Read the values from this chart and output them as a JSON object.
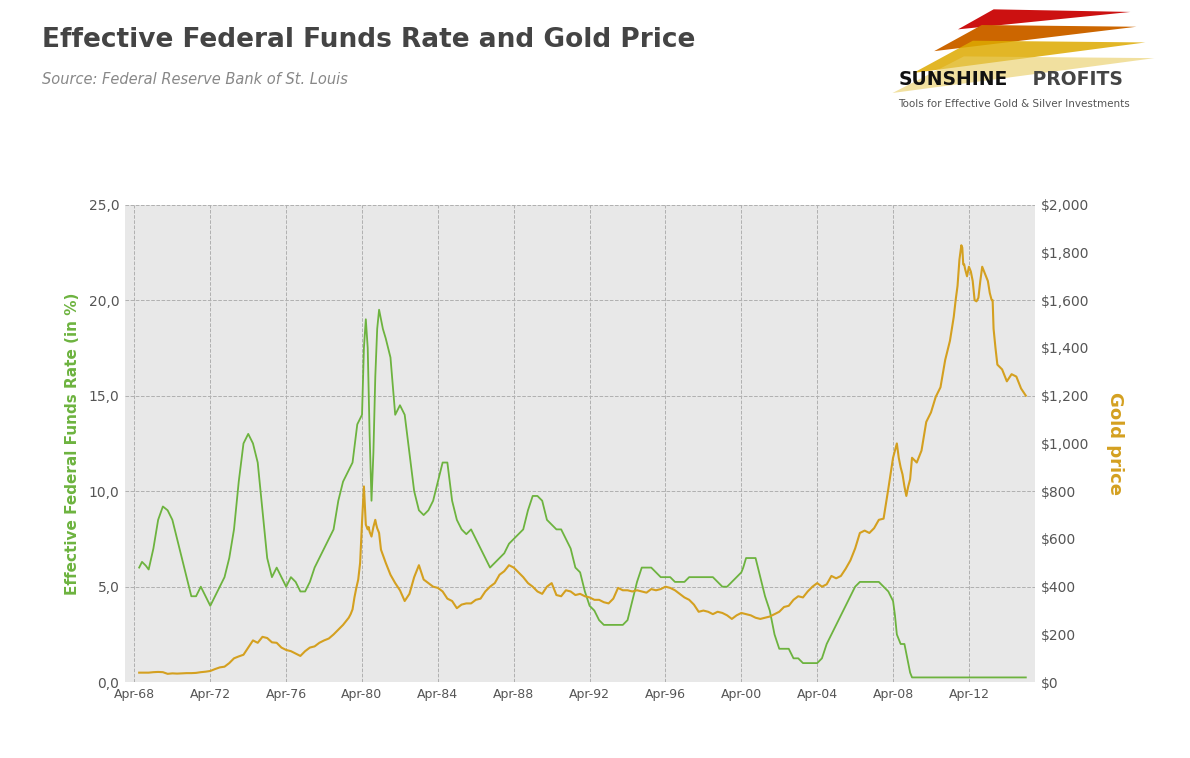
{
  "title": "Effective Federal Funds Rate and Gold Price",
  "source": "Source: Federal Reserve Bank of St. Louis",
  "ylabel_left": "Effective Federal Funds Rate (in %)",
  "ylabel_right": "Gold price",
  "background_color": "#e8e8e8",
  "figure_background": "#ffffff",
  "line_color_ffr": "#6db33f",
  "line_color_gold": "#d4a020",
  "ylim_left": [
    0,
    25
  ],
  "ylim_right": [
    0,
    2000
  ],
  "ytick_labels_left": [
    "0,0",
    "5,0",
    "10,0",
    "15,0",
    "20,0",
    "25,0"
  ],
  "ytick_vals_left": [
    0,
    5,
    10,
    15,
    20,
    25
  ],
  "ytick_vals_right": [
    0,
    200,
    400,
    600,
    800,
    1000,
    1200,
    1400,
    1600,
    1800,
    2000
  ],
  "ytick_labels_right": [
    "$0",
    "$200",
    "$400",
    "$600",
    "$800",
    "$1,000",
    "$1,200",
    "$1,400",
    "$1,600",
    "$1,800",
    "$2,000"
  ],
  "xtick_years": [
    1968,
    1972,
    1976,
    1980,
    1984,
    1988,
    1992,
    1996,
    2000,
    2004,
    2008,
    2012
  ],
  "xtick_labels": [
    "Apr-68",
    "Apr-72",
    "Apr-76",
    "Apr-80",
    "Apr-84",
    "Apr-88",
    "Apr-92",
    "Apr-96",
    "Apr-00",
    "Apr-04",
    "Apr-08",
    "Apr-12"
  ],
  "xlim": [
    1967.5,
    2015.5
  ],
  "ffr_data": [
    [
      1968.25,
      6.0
    ],
    [
      1968.4,
      6.3
    ],
    [
      1968.6,
      6.1
    ],
    [
      1968.75,
      5.9
    ],
    [
      1969.0,
      7.0
    ],
    [
      1969.25,
      8.5
    ],
    [
      1969.5,
      9.2
    ],
    [
      1969.75,
      9.0
    ],
    [
      1970.0,
      8.5
    ],
    [
      1970.25,
      7.5
    ],
    [
      1970.5,
      6.5
    ],
    [
      1970.75,
      5.5
    ],
    [
      1971.0,
      4.5
    ],
    [
      1971.25,
      4.5
    ],
    [
      1971.5,
      5.0
    ],
    [
      1971.75,
      4.5
    ],
    [
      1972.0,
      4.0
    ],
    [
      1972.25,
      4.5
    ],
    [
      1972.5,
      5.0
    ],
    [
      1972.75,
      5.5
    ],
    [
      1973.0,
      6.5
    ],
    [
      1973.25,
      8.0
    ],
    [
      1973.5,
      10.5
    ],
    [
      1973.75,
      12.5
    ],
    [
      1974.0,
      13.0
    ],
    [
      1974.25,
      12.5
    ],
    [
      1974.5,
      11.5
    ],
    [
      1974.75,
      9.0
    ],
    [
      1975.0,
      6.5
    ],
    [
      1975.25,
      5.5
    ],
    [
      1975.5,
      6.0
    ],
    [
      1975.75,
      5.5
    ],
    [
      1976.0,
      5.0
    ],
    [
      1976.25,
      5.5
    ],
    [
      1976.5,
      5.25
    ],
    [
      1976.75,
      4.75
    ],
    [
      1977.0,
      4.75
    ],
    [
      1977.25,
      5.25
    ],
    [
      1977.5,
      6.0
    ],
    [
      1977.75,
      6.5
    ],
    [
      1978.0,
      7.0
    ],
    [
      1978.25,
      7.5
    ],
    [
      1978.5,
      8.0
    ],
    [
      1978.75,
      9.5
    ],
    [
      1979.0,
      10.5
    ],
    [
      1979.25,
      11.0
    ],
    [
      1979.5,
      11.5
    ],
    [
      1979.75,
      13.5
    ],
    [
      1980.0,
      14.0
    ],
    [
      1980.1,
      17.5
    ],
    [
      1980.2,
      19.0
    ],
    [
      1980.3,
      17.5
    ],
    [
      1980.4,
      13.0
    ],
    [
      1980.5,
      9.5
    ],
    [
      1980.6,
      12.0
    ],
    [
      1980.7,
      16.0
    ],
    [
      1980.8,
      18.5
    ],
    [
      1980.9,
      19.5
    ],
    [
      1981.0,
      19.0
    ],
    [
      1981.1,
      18.5
    ],
    [
      1981.25,
      18.0
    ],
    [
      1981.5,
      17.0
    ],
    [
      1981.75,
      14.0
    ],
    [
      1982.0,
      14.5
    ],
    [
      1982.25,
      14.0
    ],
    [
      1982.5,
      12.0
    ],
    [
      1982.75,
      10.0
    ],
    [
      1983.0,
      9.0
    ],
    [
      1983.25,
      8.75
    ],
    [
      1983.5,
      9.0
    ],
    [
      1983.75,
      9.5
    ],
    [
      1984.0,
      10.5
    ],
    [
      1984.25,
      11.5
    ],
    [
      1984.5,
      11.5
    ],
    [
      1984.75,
      9.5
    ],
    [
      1985.0,
      8.5
    ],
    [
      1985.25,
      8.0
    ],
    [
      1985.5,
      7.75
    ],
    [
      1985.75,
      8.0
    ],
    [
      1986.0,
      7.5
    ],
    [
      1986.25,
      7.0
    ],
    [
      1986.5,
      6.5
    ],
    [
      1986.75,
      6.0
    ],
    [
      1987.0,
      6.25
    ],
    [
      1987.25,
      6.5
    ],
    [
      1987.5,
      6.75
    ],
    [
      1987.75,
      7.25
    ],
    [
      1988.0,
      7.5
    ],
    [
      1988.25,
      7.75
    ],
    [
      1988.5,
      8.0
    ],
    [
      1988.75,
      9.0
    ],
    [
      1989.0,
      9.75
    ],
    [
      1989.25,
      9.75
    ],
    [
      1989.5,
      9.5
    ],
    [
      1989.75,
      8.5
    ],
    [
      1990.0,
      8.25
    ],
    [
      1990.25,
      8.0
    ],
    [
      1990.5,
      8.0
    ],
    [
      1990.75,
      7.5
    ],
    [
      1991.0,
      7.0
    ],
    [
      1991.25,
      6.0
    ],
    [
      1991.5,
      5.75
    ],
    [
      1991.75,
      4.75
    ],
    [
      1992.0,
      4.0
    ],
    [
      1992.25,
      3.75
    ],
    [
      1992.5,
      3.25
    ],
    [
      1992.75,
      3.0
    ],
    [
      1993.0,
      3.0
    ],
    [
      1993.25,
      3.0
    ],
    [
      1993.5,
      3.0
    ],
    [
      1993.75,
      3.0
    ],
    [
      1994.0,
      3.25
    ],
    [
      1994.25,
      4.25
    ],
    [
      1994.5,
      5.25
    ],
    [
      1994.75,
      6.0
    ],
    [
      1995.0,
      6.0
    ],
    [
      1995.25,
      6.0
    ],
    [
      1995.5,
      5.75
    ],
    [
      1995.75,
      5.5
    ],
    [
      1996.0,
      5.5
    ],
    [
      1996.25,
      5.5
    ],
    [
      1996.5,
      5.25
    ],
    [
      1996.75,
      5.25
    ],
    [
      1997.0,
      5.25
    ],
    [
      1997.25,
      5.5
    ],
    [
      1997.5,
      5.5
    ],
    [
      1997.75,
      5.5
    ],
    [
      1998.0,
      5.5
    ],
    [
      1998.25,
      5.5
    ],
    [
      1998.5,
      5.5
    ],
    [
      1998.75,
      5.25
    ],
    [
      1999.0,
      5.0
    ],
    [
      1999.25,
      5.0
    ],
    [
      1999.5,
      5.25
    ],
    [
      1999.75,
      5.5
    ],
    [
      2000.0,
      5.75
    ],
    [
      2000.1,
      6.0
    ],
    [
      2000.25,
      6.5
    ],
    [
      2000.5,
      6.5
    ],
    [
      2000.75,
      6.5
    ],
    [
      2001.0,
      5.5
    ],
    [
      2001.25,
      4.5
    ],
    [
      2001.5,
      3.75
    ],
    [
      2001.75,
      2.5
    ],
    [
      2002.0,
      1.75
    ],
    [
      2002.25,
      1.75
    ],
    [
      2002.5,
      1.75
    ],
    [
      2002.75,
      1.25
    ],
    [
      2003.0,
      1.25
    ],
    [
      2003.25,
      1.0
    ],
    [
      2003.5,
      1.0
    ],
    [
      2003.75,
      1.0
    ],
    [
      2004.0,
      1.0
    ],
    [
      2004.25,
      1.25
    ],
    [
      2004.5,
      2.0
    ],
    [
      2004.75,
      2.5
    ],
    [
      2005.0,
      3.0
    ],
    [
      2005.25,
      3.5
    ],
    [
      2005.5,
      4.0
    ],
    [
      2005.75,
      4.5
    ],
    [
      2006.0,
      5.0
    ],
    [
      2006.25,
      5.25
    ],
    [
      2006.5,
      5.25
    ],
    [
      2006.75,
      5.25
    ],
    [
      2007.0,
      5.25
    ],
    [
      2007.25,
      5.25
    ],
    [
      2007.5,
      5.0
    ],
    [
      2007.75,
      4.75
    ],
    [
      2008.0,
      4.25
    ],
    [
      2008.1,
      3.5
    ],
    [
      2008.2,
      2.5
    ],
    [
      2008.3,
      2.25
    ],
    [
      2008.4,
      2.0
    ],
    [
      2008.5,
      2.0
    ],
    [
      2008.6,
      2.0
    ],
    [
      2008.7,
      1.5
    ],
    [
      2008.8,
      1.0
    ],
    [
      2008.9,
      0.5
    ],
    [
      2009.0,
      0.25
    ],
    [
      2009.25,
      0.25
    ],
    [
      2009.5,
      0.25
    ],
    [
      2009.75,
      0.25
    ],
    [
      2010.0,
      0.25
    ],
    [
      2010.25,
      0.25
    ],
    [
      2010.5,
      0.25
    ],
    [
      2010.75,
      0.25
    ],
    [
      2011.0,
      0.25
    ],
    [
      2011.25,
      0.25
    ],
    [
      2011.5,
      0.25
    ],
    [
      2011.75,
      0.25
    ],
    [
      2012.0,
      0.25
    ],
    [
      2012.25,
      0.25
    ],
    [
      2012.5,
      0.25
    ],
    [
      2012.75,
      0.25
    ],
    [
      2013.0,
      0.25
    ],
    [
      2013.25,
      0.25
    ],
    [
      2013.5,
      0.25
    ],
    [
      2013.75,
      0.25
    ],
    [
      2014.0,
      0.25
    ],
    [
      2014.25,
      0.25
    ],
    [
      2014.5,
      0.25
    ],
    [
      2014.75,
      0.25
    ],
    [
      2015.0,
      0.25
    ]
  ],
  "gold_data": [
    [
      1968.25,
      40
    ],
    [
      1968.5,
      40
    ],
    [
      1968.75,
      40
    ],
    [
      1969.0,
      42
    ],
    [
      1969.25,
      43
    ],
    [
      1969.5,
      42
    ],
    [
      1969.75,
      35
    ],
    [
      1970.0,
      37
    ],
    [
      1970.25,
      36
    ],
    [
      1970.5,
      37
    ],
    [
      1970.75,
      38
    ],
    [
      1971.0,
      38
    ],
    [
      1971.25,
      39
    ],
    [
      1971.5,
      42
    ],
    [
      1971.75,
      44
    ],
    [
      1972.0,
      47
    ],
    [
      1972.25,
      55
    ],
    [
      1972.5,
      62
    ],
    [
      1972.75,
      65
    ],
    [
      1973.0,
      80
    ],
    [
      1973.25,
      100
    ],
    [
      1973.5,
      108
    ],
    [
      1973.75,
      115
    ],
    [
      1974.0,
      145
    ],
    [
      1974.25,
      175
    ],
    [
      1974.5,
      165
    ],
    [
      1974.75,
      190
    ],
    [
      1975.0,
      185
    ],
    [
      1975.25,
      167
    ],
    [
      1975.5,
      165
    ],
    [
      1975.75,
      145
    ],
    [
      1976.0,
      135
    ],
    [
      1976.25,
      130
    ],
    [
      1976.5,
      120
    ],
    [
      1976.75,
      110
    ],
    [
      1977.0,
      130
    ],
    [
      1977.25,
      145
    ],
    [
      1977.5,
      150
    ],
    [
      1977.75,
      165
    ],
    [
      1978.0,
      175
    ],
    [
      1978.25,
      183
    ],
    [
      1978.5,
      200
    ],
    [
      1978.75,
      220
    ],
    [
      1979.0,
      240
    ],
    [
      1979.1,
      250
    ],
    [
      1979.2,
      260
    ],
    [
      1979.3,
      270
    ],
    [
      1979.4,
      285
    ],
    [
      1979.5,
      305
    ],
    [
      1979.6,
      355
    ],
    [
      1979.7,
      395
    ],
    [
      1979.8,
      430
    ],
    [
      1979.9,
      500
    ],
    [
      1980.0,
      670
    ],
    [
      1980.1,
      820
    ],
    [
      1980.2,
      660
    ],
    [
      1980.3,
      640
    ],
    [
      1980.35,
      650
    ],
    [
      1980.4,
      630
    ],
    [
      1980.5,
      610
    ],
    [
      1980.6,
      650
    ],
    [
      1980.7,
      680
    ],
    [
      1980.75,
      660
    ],
    [
      1980.8,
      645
    ],
    [
      1980.9,
      625
    ],
    [
      1981.0,
      555
    ],
    [
      1981.25,
      500
    ],
    [
      1981.5,
      450
    ],
    [
      1981.75,
      415
    ],
    [
      1982.0,
      385
    ],
    [
      1982.25,
      340
    ],
    [
      1982.5,
      370
    ],
    [
      1982.75,
      440
    ],
    [
      1983.0,
      490
    ],
    [
      1983.25,
      430
    ],
    [
      1983.5,
      415
    ],
    [
      1983.75,
      400
    ],
    [
      1984.0,
      395
    ],
    [
      1984.25,
      380
    ],
    [
      1984.5,
      350
    ],
    [
      1984.75,
      340
    ],
    [
      1985.0,
      310
    ],
    [
      1985.25,
      325
    ],
    [
      1985.5,
      330
    ],
    [
      1985.75,
      330
    ],
    [
      1986.0,
      345
    ],
    [
      1986.25,
      350
    ],
    [
      1986.5,
      380
    ],
    [
      1986.75,
      400
    ],
    [
      1987.0,
      415
    ],
    [
      1987.25,
      450
    ],
    [
      1987.5,
      465
    ],
    [
      1987.75,
      490
    ],
    [
      1988.0,
      480
    ],
    [
      1988.25,
      460
    ],
    [
      1988.5,
      440
    ],
    [
      1988.75,
      415
    ],
    [
      1989.0,
      400
    ],
    [
      1989.25,
      380
    ],
    [
      1989.5,
      370
    ],
    [
      1989.75,
      400
    ],
    [
      1990.0,
      415
    ],
    [
      1990.25,
      365
    ],
    [
      1990.5,
      360
    ],
    [
      1990.75,
      385
    ],
    [
      1991.0,
      380
    ],
    [
      1991.25,
      365
    ],
    [
      1991.5,
      370
    ],
    [
      1991.75,
      360
    ],
    [
      1992.0,
      355
    ],
    [
      1992.25,
      345
    ],
    [
      1992.5,
      345
    ],
    [
      1992.75,
      335
    ],
    [
      1993.0,
      330
    ],
    [
      1993.25,
      350
    ],
    [
      1993.5,
      395
    ],
    [
      1993.75,
      385
    ],
    [
      1994.0,
      385
    ],
    [
      1994.25,
      380
    ],
    [
      1994.5,
      385
    ],
    [
      1994.75,
      380
    ],
    [
      1995.0,
      375
    ],
    [
      1995.25,
      390
    ],
    [
      1995.5,
      385
    ],
    [
      1995.75,
      390
    ],
    [
      1996.0,
      400
    ],
    [
      1996.25,
      395
    ],
    [
      1996.5,
      385
    ],
    [
      1996.75,
      370
    ],
    [
      1997.0,
      355
    ],
    [
      1997.25,
      345
    ],
    [
      1997.5,
      325
    ],
    [
      1997.75,
      295
    ],
    [
      1998.0,
      300
    ],
    [
      1998.25,
      295
    ],
    [
      1998.5,
      285
    ],
    [
      1998.75,
      295
    ],
    [
      1999.0,
      290
    ],
    [
      1999.25,
      280
    ],
    [
      1999.5,
      265
    ],
    [
      1999.75,
      280
    ],
    [
      2000.0,
      290
    ],
    [
      2000.25,
      285
    ],
    [
      2000.5,
      280
    ],
    [
      2000.75,
      270
    ],
    [
      2001.0,
      265
    ],
    [
      2001.25,
      270
    ],
    [
      2001.5,
      275
    ],
    [
      2001.75,
      285
    ],
    [
      2002.0,
      295
    ],
    [
      2002.25,
      315
    ],
    [
      2002.5,
      320
    ],
    [
      2002.75,
      345
    ],
    [
      2003.0,
      360
    ],
    [
      2003.25,
      355
    ],
    [
      2003.5,
      380
    ],
    [
      2003.75,
      400
    ],
    [
      2004.0,
      415
    ],
    [
      2004.25,
      400
    ],
    [
      2004.5,
      410
    ],
    [
      2004.75,
      445
    ],
    [
      2005.0,
      435
    ],
    [
      2005.25,
      445
    ],
    [
      2005.5,
      475
    ],
    [
      2005.75,
      510
    ],
    [
      2006.0,
      560
    ],
    [
      2006.25,
      625
    ],
    [
      2006.5,
      635
    ],
    [
      2006.75,
      625
    ],
    [
      2007.0,
      645
    ],
    [
      2007.25,
      680
    ],
    [
      2007.5,
      685
    ],
    [
      2007.75,
      810
    ],
    [
      2008.0,
      940
    ],
    [
      2008.1,
      970
    ],
    [
      2008.2,
      1000
    ],
    [
      2008.3,
      940
    ],
    [
      2008.4,
      900
    ],
    [
      2008.5,
      870
    ],
    [
      2008.6,
      820
    ],
    [
      2008.7,
      780
    ],
    [
      2008.75,
      800
    ],
    [
      2008.8,
      820
    ],
    [
      2008.9,
      850
    ],
    [
      2009.0,
      940
    ],
    [
      2009.25,
      920
    ],
    [
      2009.5,
      970
    ],
    [
      2009.75,
      1090
    ],
    [
      2010.0,
      1130
    ],
    [
      2010.25,
      1195
    ],
    [
      2010.5,
      1235
    ],
    [
      2010.75,
      1350
    ],
    [
      2011.0,
      1430
    ],
    [
      2011.1,
      1480
    ],
    [
      2011.2,
      1530
    ],
    [
      2011.3,
      1600
    ],
    [
      2011.4,
      1660
    ],
    [
      2011.5,
      1770
    ],
    [
      2011.6,
      1830
    ],
    [
      2011.65,
      1820
    ],
    [
      2011.7,
      1750
    ],
    [
      2011.75,
      1750
    ],
    [
      2011.8,
      1730
    ],
    [
      2011.9,
      1700
    ],
    [
      2012.0,
      1740
    ],
    [
      2012.1,
      1720
    ],
    [
      2012.2,
      1680
    ],
    [
      2012.25,
      1640
    ],
    [
      2012.3,
      1600
    ],
    [
      2012.4,
      1595
    ],
    [
      2012.5,
      1610
    ],
    [
      2012.6,
      1680
    ],
    [
      2012.7,
      1740
    ],
    [
      2012.75,
      1730
    ],
    [
      2012.8,
      1720
    ],
    [
      2012.9,
      1700
    ],
    [
      2013.0,
      1680
    ],
    [
      2013.1,
      1630
    ],
    [
      2013.2,
      1600
    ],
    [
      2013.25,
      1600
    ],
    [
      2013.3,
      1480
    ],
    [
      2013.4,
      1400
    ],
    [
      2013.5,
      1330
    ],
    [
      2013.75,
      1310
    ],
    [
      2014.0,
      1260
    ],
    [
      2014.25,
      1290
    ],
    [
      2014.5,
      1280
    ],
    [
      2014.75,
      1230
    ],
    [
      2015.0,
      1200
    ]
  ]
}
